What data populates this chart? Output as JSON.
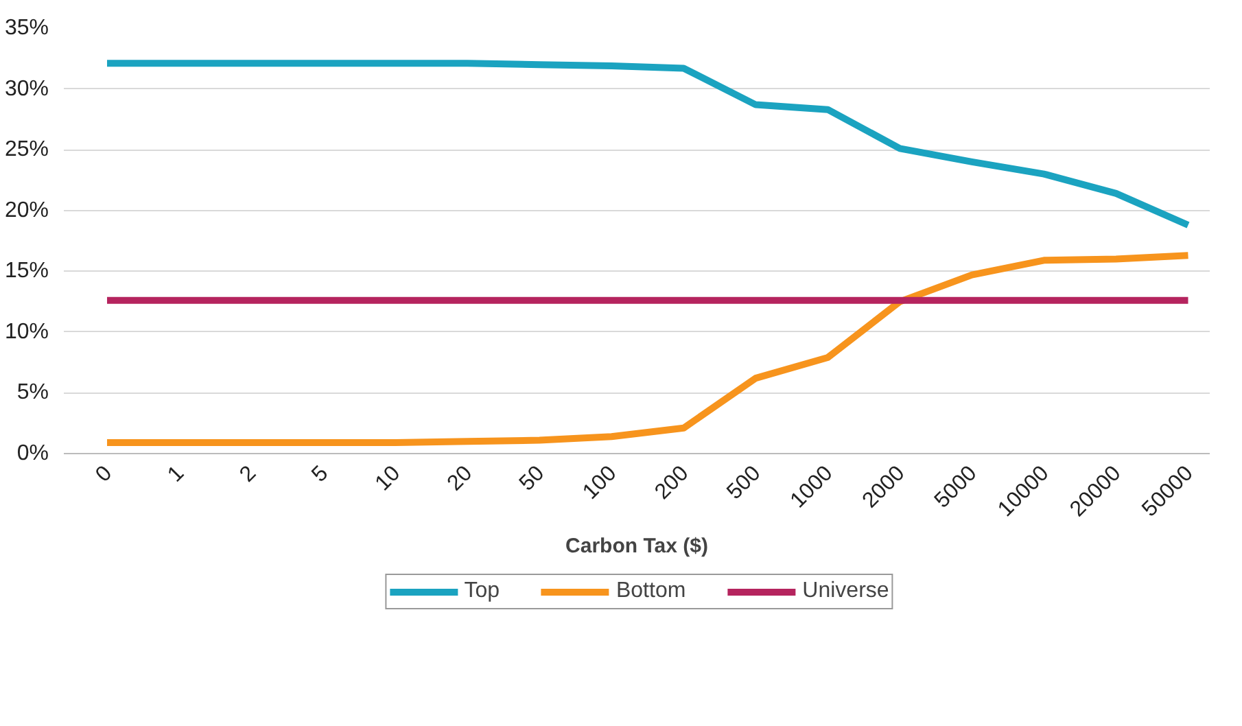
{
  "chart_data": {
    "type": "line",
    "xlabel": "Carbon Tax ($)",
    "categories": [
      "0",
      "1",
      "2",
      "5",
      "10",
      "20",
      "50",
      "100",
      "200",
      "500",
      "1000",
      "2000",
      "5000",
      "10000",
      "20000",
      "50000"
    ],
    "ylim": [
      0,
      35
    ],
    "yticks": [
      {
        "value": 0,
        "label": "0%"
      },
      {
        "value": 5,
        "label": "5%"
      },
      {
        "value": 10,
        "label": "10%"
      },
      {
        "value": 15,
        "label": "15%"
      },
      {
        "value": 20,
        "label": "20%"
      },
      {
        "value": 25,
        "label": "25%"
      },
      {
        "value": 30,
        "label": "30%"
      },
      {
        "value": 35,
        "label": "35%"
      }
    ],
    "grid": "y",
    "legend": "bottom",
    "series": [
      {
        "name": "Top",
        "color": "#1ba3c0",
        "values": [
          32.1,
          32.1,
          32.1,
          32.1,
          32.1,
          32.1,
          32.0,
          31.9,
          31.7,
          28.7,
          28.3,
          25.1,
          24.0,
          23.0,
          21.4,
          18.8
        ]
      },
      {
        "name": "Bottom",
        "color": "#f7941d",
        "values": [
          0.9,
          0.9,
          0.9,
          0.9,
          0.9,
          1.0,
          1.1,
          1.4,
          2.1,
          6.2,
          7.9,
          12.5,
          14.7,
          15.9,
          16.0,
          16.3
        ]
      },
      {
        "name": "Universe",
        "color": "#b5245e",
        "values": [
          12.6,
          12.6,
          12.6,
          12.6,
          12.6,
          12.6,
          12.6,
          12.6,
          12.6,
          12.6,
          12.6,
          12.6,
          12.6,
          12.6,
          12.6,
          12.6
        ]
      }
    ]
  }
}
